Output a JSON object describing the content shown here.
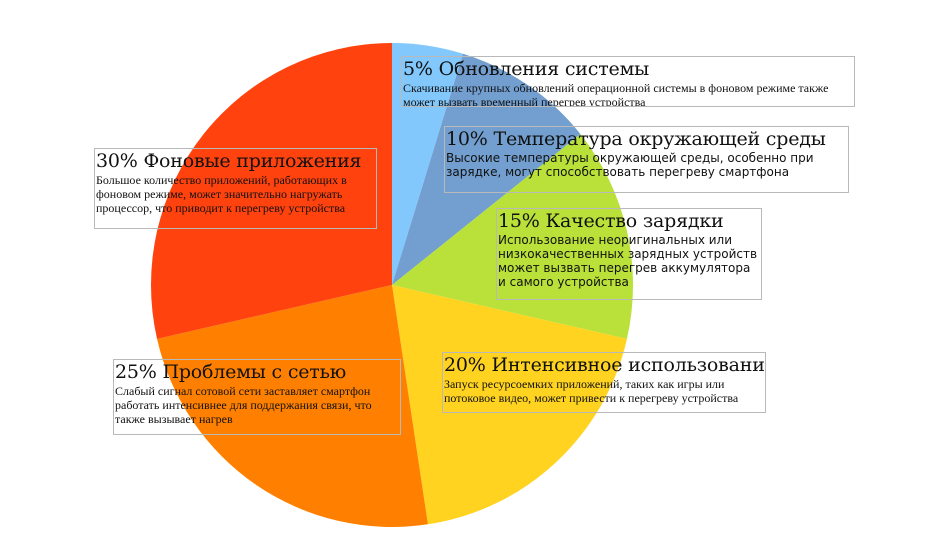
{
  "chart_data": {
    "type": "pie",
    "start_angle_deg": 0,
    "direction": "clockwise",
    "slices": [
      {
        "value": 5,
        "label": "5% Обновления системы",
        "description": "Скачивание крупных обновлений операционной системы в фоновом режиме также может вызвать временный перегрев устройства",
        "color": "#82c8fc"
      },
      {
        "value": 10,
        "label": "10% Температура окружающей среды",
        "description": "Высокие температуры окружающей среды, особенно при зарядке, могут способствовать перегреву смартфона",
        "color": "#729fcf"
      },
      {
        "value": 15,
        "label": "15% Качество зарядки",
        "description": "Использование неоригинальных или низкокачественных зарядных устройств может вызвать перегрев аккумулятора и самого устройства",
        "color": "#b9e139"
      },
      {
        "value": 20,
        "label": "20% Интенсивное использование",
        "description": "Запуск ресурсоемких приложений, таких как игры или потоковое видео, может привести к перегреву устройства",
        "color": "#ffd320"
      },
      {
        "value": 25,
        "label": "25% Проблемы с сетью",
        "description": "Слабый сигнал сотовой сети заставляет смартфон работать интенсивнее для поддержания связи, что также вызывает нагрев",
        "color": "#ff8000"
      },
      {
        "value": 30,
        "label": "30% Фоновые приложения",
        "description": "Большое количество приложений, работающих в фоновом режиме, может значительно нагружать процессор, что приводит к перегреву устройства",
        "color": "#ff420e"
      }
    ]
  }
}
